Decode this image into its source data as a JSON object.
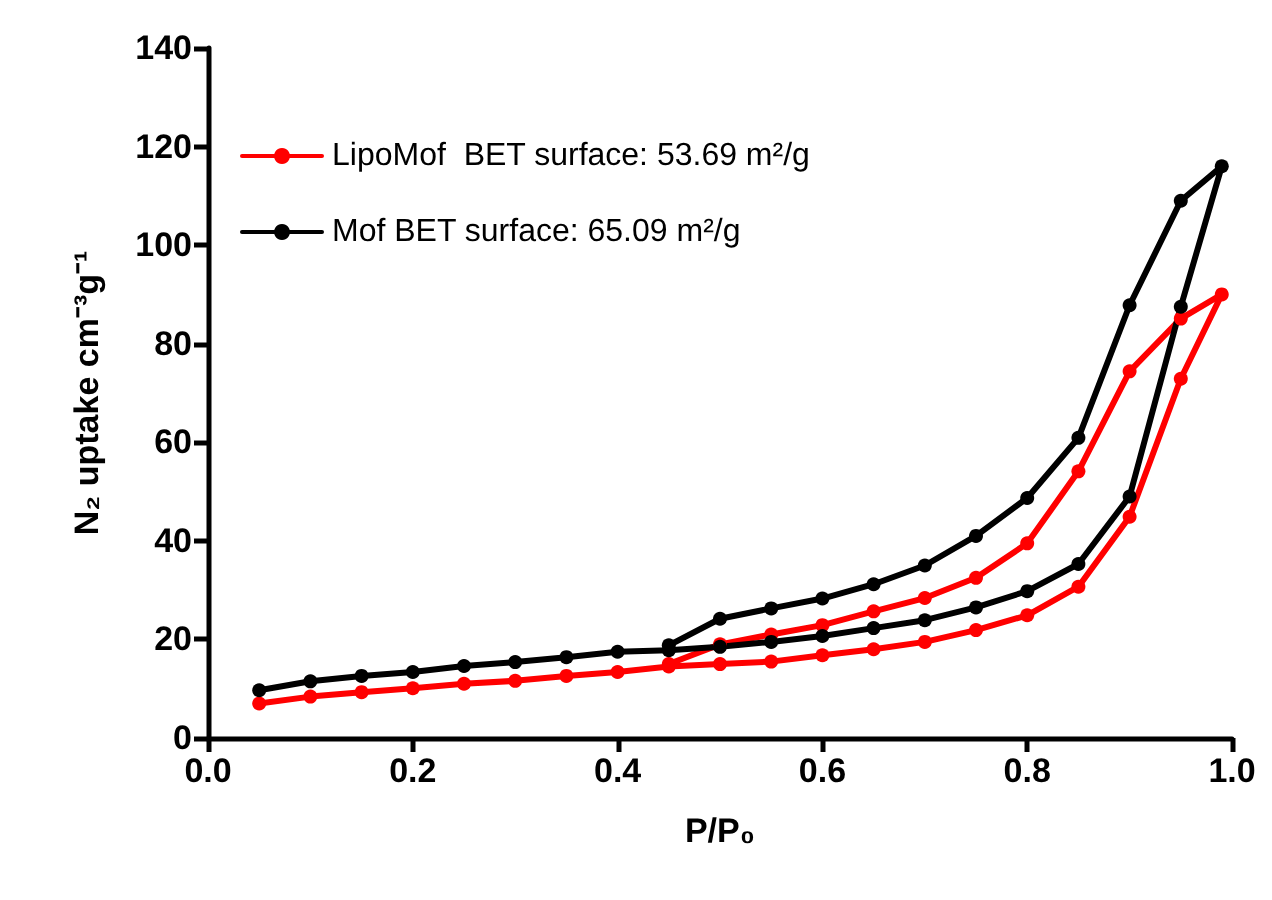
{
  "chart_data": {
    "type": "line",
    "xlabel": "P/P₀",
    "ylabel": "N₂ uptake cm⁻³g⁻¹",
    "xlim": [
      0,
      1
    ],
    "xticks": [
      {
        "value": 0,
        "label": "0.0"
      },
      {
        "value": 0.2,
        "label": "0.2"
      },
      {
        "value": 0.4,
        "label": "0.4"
      },
      {
        "value": 0.6,
        "label": "0.6"
      },
      {
        "value": 0.8,
        "label": "0.8"
      },
      {
        "value": 1,
        "label": "1.0"
      }
    ],
    "ylim": [
      0,
      140
    ],
    "yticks": [
      0,
      20,
      40,
      60,
      80,
      100,
      120,
      140
    ],
    "series": [
      {
        "name": "LipoMof  BET surface: 53.69 m²/g",
        "color": "#ff0000",
        "x": [
          0.05,
          0.1,
          0.15,
          0.2,
          0.25,
          0.3,
          0.35,
          0.4,
          0.45,
          0.5,
          0.55,
          0.6,
          0.65,
          0.7,
          0.75,
          0.8,
          0.85,
          0.9,
          0.95,
          0.99,
          0.95,
          0.9,
          0.85,
          0.8,
          0.75,
          0.7,
          0.65,
          0.6,
          0.55,
          0.5,
          0.45
        ],
        "values": [
          7,
          8.4,
          9.3,
          10.1,
          11,
          11.6,
          12.6,
          13.4,
          14.5,
          15,
          15.5,
          16.8,
          18,
          19.5,
          21.9,
          24.9,
          30.7,
          44.9,
          72.9,
          90,
          85.1,
          74.4,
          54.1,
          39.5,
          32.5,
          28.4,
          25.7,
          22.9,
          21,
          19,
          15
        ]
      },
      {
        "name": "Mof BET surface: 65.09 m²/g",
        "color": "#000000",
        "x": [
          0.05,
          0.1,
          0.15,
          0.2,
          0.25,
          0.3,
          0.35,
          0.4,
          0.45,
          0.5,
          0.55,
          0.6,
          0.65,
          0.7,
          0.75,
          0.8,
          0.85,
          0.9,
          0.95,
          0.99,
          0.95,
          0.9,
          0.85,
          0.8,
          0.75,
          0.7,
          0.65,
          0.6,
          0.55,
          0.5,
          0.45
        ],
        "values": [
          9.7,
          11.5,
          12.6,
          13.4,
          14.6,
          15.4,
          16.4,
          17.5,
          17.8,
          18.5,
          19.5,
          20.7,
          22.3,
          23.9,
          26.5,
          29.8,
          35.3,
          49,
          87.5,
          116,
          109,
          87.8,
          60.9,
          48.7,
          41,
          35,
          31.2,
          28.3,
          26.3,
          24.2,
          18.8
        ]
      }
    ],
    "grid": false,
    "legend": "top left",
    "marker": "circle",
    "line_style": "solid"
  }
}
